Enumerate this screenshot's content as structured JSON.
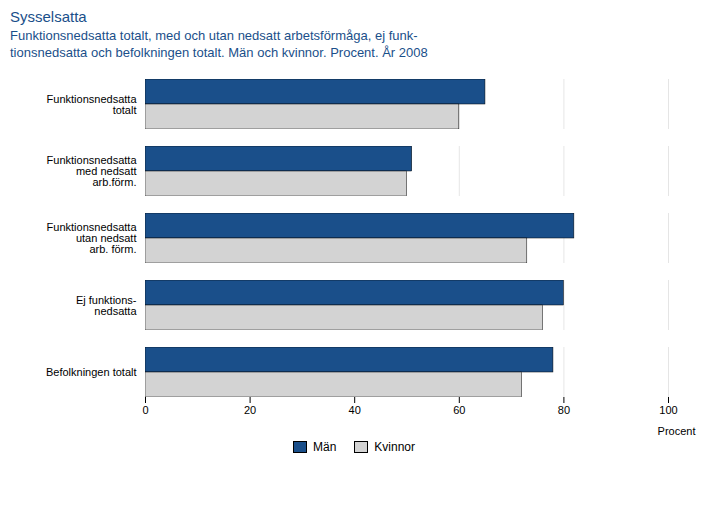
{
  "chart_data": {
    "type": "bar",
    "orientation": "horizontal",
    "title": "Sysselsatta",
    "subtitle": "Funktionsnedsatta totalt, med och utan nedsatt arbetsförmåga, ej funk-\ntionsnedsatta och befolkningen totalt. Män och kvinnor. Procent. År 2008",
    "categories": [
      "Funktionsnedsatta\ntotalt",
      "Funktionsnedsatta\nmed nedsatt\narb.förm.",
      "Funktionsnedsatta\nutan nedsatt\narb. förm.",
      "Ej funktions-\nnedsatta",
      "Befolkningen totalt"
    ],
    "series": [
      {
        "name": "Män",
        "color": "#1a4f8a",
        "values": [
          65,
          51,
          82,
          80,
          78
        ]
      },
      {
        "name": "Kvinnor",
        "color": "#d3d3d3",
        "values": [
          60,
          50,
          73,
          76,
          72
        ]
      }
    ],
    "xlabel": "Procent",
    "xlim": [
      0,
      100
    ],
    "xticks": [
      0,
      20,
      40,
      60,
      80,
      100
    ],
    "grid": true,
    "legend": "bottom",
    "title_color": "#1a4f8a"
  }
}
